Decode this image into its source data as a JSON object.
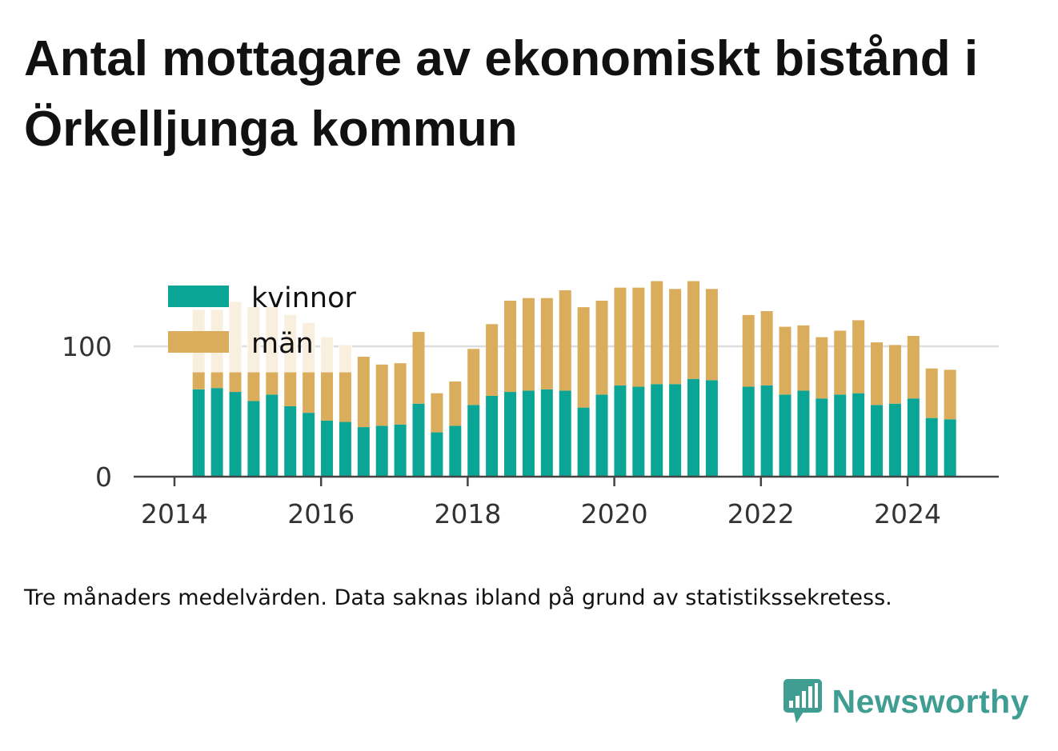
{
  "title": "Antal mottagare av ekonomiskt bistånd i Örkelljunga kommun",
  "note": "Tre månaders medelvärden. Data saknas ibland på grund av statistikssekretess.",
  "brand": {
    "name": "Newsworthy",
    "icon": "bar-chart-speech-bubble-icon",
    "color": "#3f9d92"
  },
  "chart_data": {
    "type": "bar",
    "stacked": true,
    "x_tick_labels": [
      "2014",
      "2016",
      "2018",
      "2020",
      "2022",
      "2024"
    ],
    "y_tick_labels": [
      "0",
      "100"
    ],
    "ylim": [
      0,
      155
    ],
    "grid": true,
    "legend_position": "top-left",
    "series": [
      {
        "name": "kvinnor",
        "color": "#0ba596",
        "x": [
          2014.33,
          2014.58,
          2014.83,
          2015.08,
          2015.33,
          2015.58,
          2015.83,
          2016.08,
          2016.33,
          2016.58,
          2016.83,
          2017.08,
          2017.33,
          2017.58,
          2017.83,
          2018.08,
          2018.33,
          2018.58,
          2018.83,
          2019.08,
          2019.33,
          2019.58,
          2019.83,
          2020.08,
          2020.33,
          2020.58,
          2020.83,
          2021.08,
          2021.33,
          2021.83,
          2022.08,
          2022.33,
          2022.58,
          2022.83,
          2023.08,
          2023.33,
          2023.58,
          2023.83,
          2024.08,
          2024.33,
          2024.58
        ],
        "values": [
          67,
          68,
          65,
          58,
          63,
          54,
          49,
          43,
          42,
          38,
          39,
          40,
          56,
          34,
          39,
          55,
          62,
          65,
          66,
          67,
          66,
          53,
          63,
          70,
          69,
          71,
          71,
          75,
          74,
          69,
          70,
          63,
          66,
          60,
          63,
          64,
          55,
          56,
          60,
          45,
          44
        ]
      },
      {
        "name": "män",
        "color": "#d9ad5b",
        "x": [
          2014.33,
          2014.58,
          2014.83,
          2015.08,
          2015.33,
          2015.58,
          2015.83,
          2016.08,
          2016.33,
          2016.58,
          2016.83,
          2017.08,
          2017.33,
          2017.58,
          2017.83,
          2018.08,
          2018.33,
          2018.58,
          2018.83,
          2019.08,
          2019.33,
          2019.58,
          2019.83,
          2020.08,
          2020.33,
          2020.58,
          2020.83,
          2021.08,
          2021.33,
          2021.83,
          2022.08,
          2022.33,
          2022.58,
          2022.83,
          2023.08,
          2023.33,
          2023.58,
          2023.83,
          2024.08,
          2024.33,
          2024.58
        ],
        "values": [
          61,
          60,
          69,
          72,
          67,
          70,
          69,
          64,
          59,
          54,
          47,
          47,
          55,
          30,
          34,
          43,
          55,
          70,
          71,
          70,
          77,
          77,
          72,
          75,
          76,
          79,
          73,
          75,
          70,
          55,
          57,
          52,
          50,
          47,
          49,
          56,
          48,
          45,
          48,
          38,
          38
        ]
      }
    ],
    "faded_points": [
      2014.33,
      2014.58,
      2014.83,
      2015.08,
      2015.33,
      2015.58,
      2015.83,
      2016.08,
      2016.33
    ]
  }
}
